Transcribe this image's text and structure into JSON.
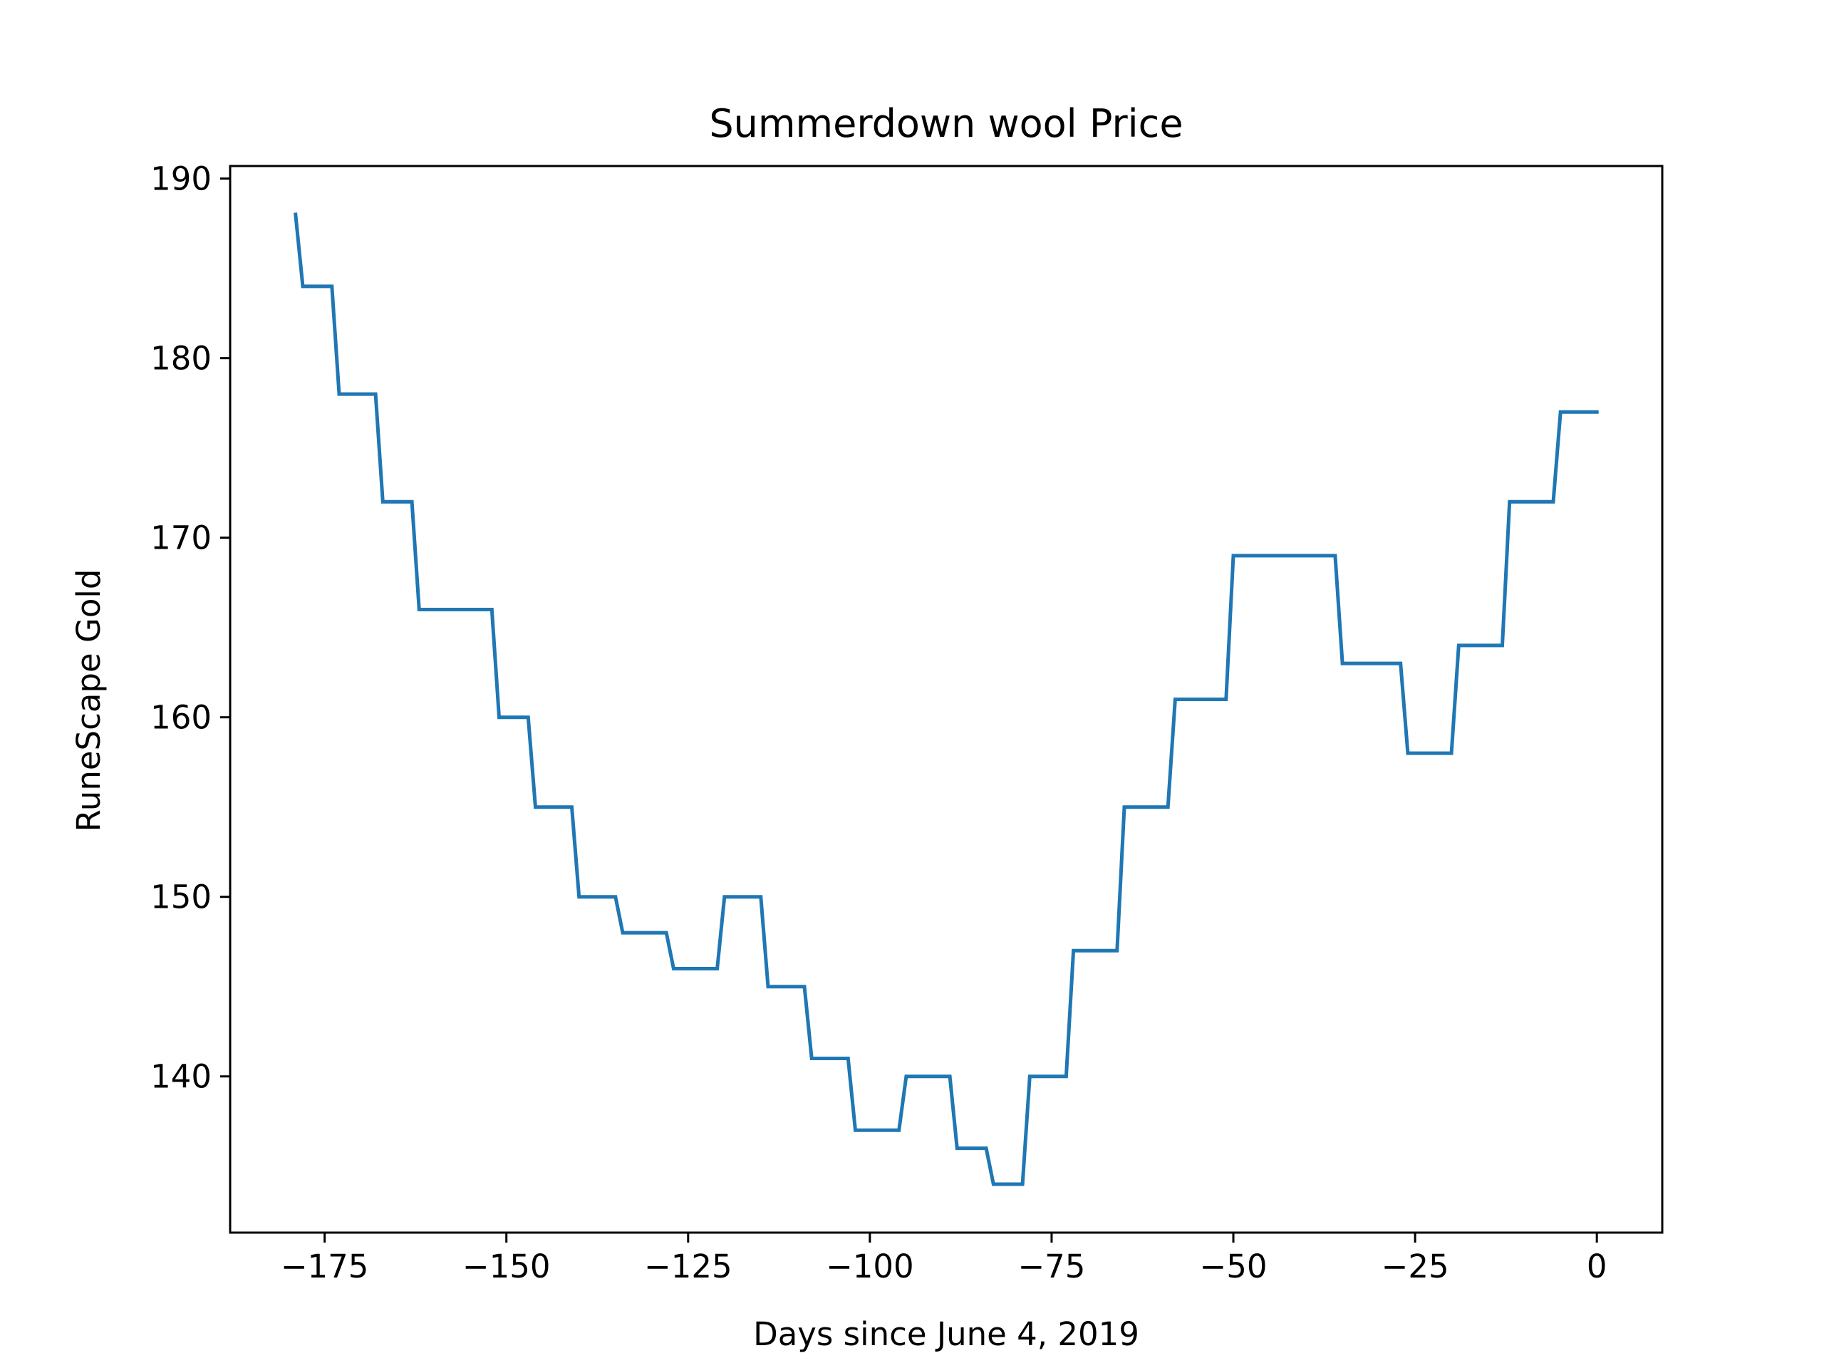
{
  "chart_data": {
    "type": "line",
    "title": "Summerdown wool Price",
    "xlabel": "Days since June 4, 2019",
    "ylabel": "RuneScape Gold",
    "xlim": [
      -188,
      9
    ],
    "ylim": [
      131.3,
      190.7
    ],
    "xticks": [
      -175,
      -150,
      -125,
      -100,
      -75,
      -50,
      -25,
      0
    ],
    "xtick_labels": [
      "−175",
      "−150",
      "−125",
      "−100",
      "−75",
      "−50",
      "−25",
      "0"
    ],
    "yticks": [
      140,
      150,
      160,
      170,
      180,
      190
    ],
    "ytick_labels": [
      "140",
      "150",
      "160",
      "170",
      "180",
      "190"
    ],
    "grid": false,
    "line_color": "#1f77b4",
    "series": [
      {
        "x": [
          -179,
          -178,
          -174,
          -173,
          -168,
          -167,
          -163,
          -162,
          -152,
          -151,
          -147,
          -146,
          -141,
          -140,
          -135,
          -134,
          -128,
          -127,
          -121,
          -120,
          -115,
          -114,
          -109,
          -108,
          -103,
          -102,
          -96,
          -95,
          -89,
          -88,
          -84,
          -83,
          -79,
          -78,
          -73,
          -72,
          -66,
          -65,
          -59,
          -58,
          -51,
          -50,
          -36,
          -35,
          -27,
          -26,
          -20,
          -19,
          -13,
          -12,
          -6,
          -5,
          0
        ],
        "y": [
          188,
          184,
          184,
          178,
          178,
          172,
          172,
          166,
          166,
          160,
          160,
          155,
          155,
          150,
          150,
          148,
          148,
          146,
          146,
          150,
          150,
          145,
          145,
          141,
          141,
          137,
          137,
          140,
          140,
          136,
          136,
          134,
          134,
          140,
          140,
          147,
          147,
          155,
          155,
          161,
          161,
          169,
          169,
          163,
          163,
          158,
          158,
          164,
          164,
          172,
          172,
          177,
          177
        ]
      }
    ]
  }
}
